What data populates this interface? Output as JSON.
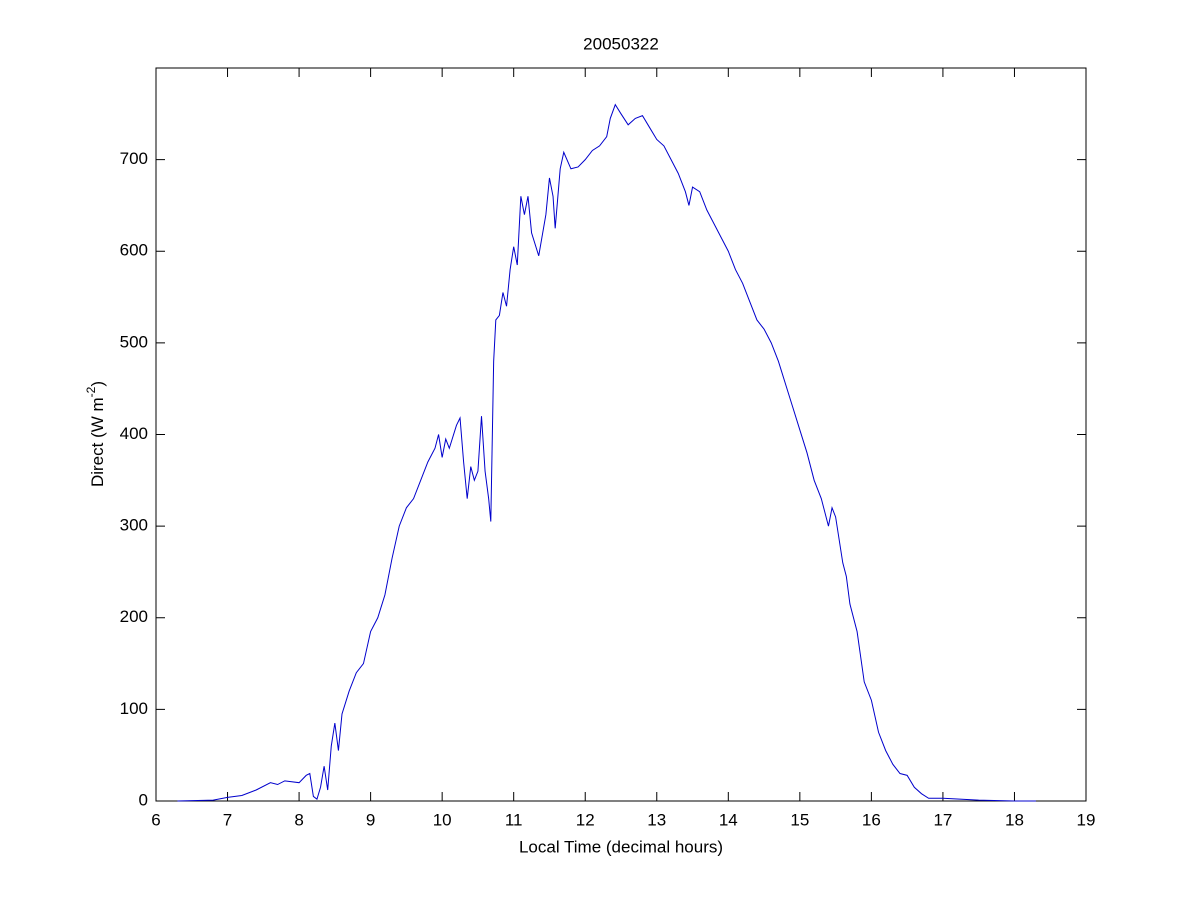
{
  "chart_data": {
    "type": "line",
    "title": "20050322",
    "x_label": "Local Time (decimal hours)",
    "y_label": {
      "text": "Direct (W m",
      "superscript": "-2",
      "suffix": ")"
    },
    "xlim": [
      6,
      19
    ],
    "xticks": [
      6,
      7,
      8,
      9,
      10,
      11,
      12,
      13,
      14,
      15,
      16,
      17,
      18,
      19
    ],
    "ylim": [
      0,
      800
    ],
    "yticks": [
      0,
      100,
      200,
      300,
      400,
      500,
      600,
      700
    ],
    "grid": false,
    "series": [
      {
        "color": "#0000cc",
        "x": [
          6.3,
          6.8,
          7.0,
          7.2,
          7.4,
          7.6,
          7.7,
          7.8,
          8.0,
          8.1,
          8.15,
          8.2,
          8.25,
          8.3,
          8.35,
          8.4,
          8.45,
          8.5,
          8.55,
          8.6,
          8.7,
          8.8,
          8.9,
          9.0,
          9.1,
          9.2,
          9.3,
          9.4,
          9.5,
          9.6,
          9.7,
          9.8,
          9.9,
          9.95,
          10.0,
          10.05,
          10.1,
          10.2,
          10.25,
          10.3,
          10.35,
          10.4,
          10.45,
          10.5,
          10.55,
          10.6,
          10.65,
          10.68,
          10.72,
          10.75,
          10.8,
          10.85,
          10.9,
          10.95,
          11.0,
          11.05,
          11.1,
          11.15,
          11.2,
          11.25,
          11.35,
          11.45,
          11.5,
          11.55,
          11.58,
          11.65,
          11.7,
          11.8,
          11.9,
          12.0,
          12.1,
          12.2,
          12.3,
          12.35,
          12.42,
          12.5,
          12.6,
          12.7,
          12.8,
          12.9,
          13.0,
          13.1,
          13.2,
          13.3,
          13.4,
          13.45,
          13.5,
          13.6,
          13.7,
          13.8,
          13.9,
          14.0,
          14.1,
          14.2,
          14.3,
          14.4,
          14.5,
          14.6,
          14.7,
          14.8,
          14.9,
          15.0,
          15.1,
          15.2,
          15.3,
          15.4,
          15.45,
          15.5,
          15.6,
          15.65,
          15.7,
          15.8,
          15.9,
          16.0,
          16.1,
          16.2,
          16.3,
          16.4,
          16.5,
          16.6,
          16.7,
          16.8,
          17.0,
          17.5,
          18.0,
          18.3
        ],
        "values": [
          0,
          1,
          4,
          6,
          12,
          20,
          18,
          22,
          20,
          28,
          30,
          5,
          2,
          15,
          38,
          12,
          60,
          85,
          55,
          95,
          120,
          140,
          150,
          185,
          200,
          225,
          265,
          300,
          320,
          330,
          350,
          370,
          385,
          400,
          375,
          395,
          385,
          410,
          418,
          370,
          330,
          365,
          350,
          360,
          420,
          360,
          330,
          305,
          480,
          525,
          530,
          555,
          540,
          580,
          605,
          585,
          660,
          640,
          660,
          620,
          595,
          640,
          680,
          660,
          625,
          690,
          708,
          690,
          692,
          700,
          710,
          715,
          725,
          745,
          760,
          750,
          738,
          745,
          748,
          735,
          722,
          715,
          700,
          685,
          665,
          650,
          670,
          665,
          645,
          630,
          615,
          600,
          580,
          565,
          545,
          525,
          515,
          500,
          480,
          455,
          430,
          405,
          380,
          350,
          330,
          300,
          320,
          310,
          260,
          245,
          215,
          185,
          130,
          110,
          75,
          55,
          40,
          30,
          28,
          15,
          8,
          3,
          3,
          1,
          0,
          0
        ]
      }
    ]
  }
}
